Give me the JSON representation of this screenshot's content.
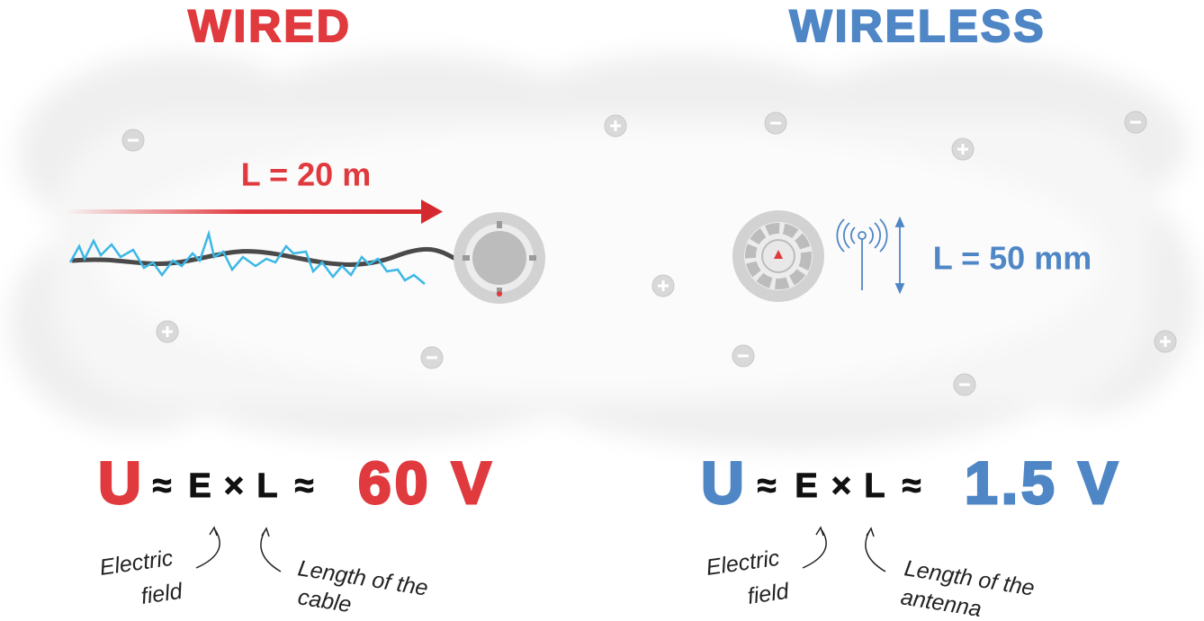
{
  "wired": {
    "title": "WIRED",
    "length_label": "L = 20 m",
    "formula": {
      "u": "U",
      "approx1": "≈",
      "e": "E",
      "times": "×",
      "l": "L",
      "approx2": "≈",
      "result": "60 V"
    },
    "notes": {
      "field": [
        "Electric",
        "field"
      ],
      "length": [
        "Length of the",
        "cable"
      ]
    }
  },
  "wireless": {
    "title": "WIRELESS",
    "length_label": "L = 50 mm",
    "formula": {
      "u": "U",
      "approx1": "≈",
      "e": "E",
      "times": "×",
      "l": "L",
      "approx2": "≈",
      "result": "1.5 V"
    },
    "notes": {
      "field": [
        "Electric",
        "field"
      ],
      "length": [
        "Length of the",
        "antenna"
      ]
    }
  }
}
